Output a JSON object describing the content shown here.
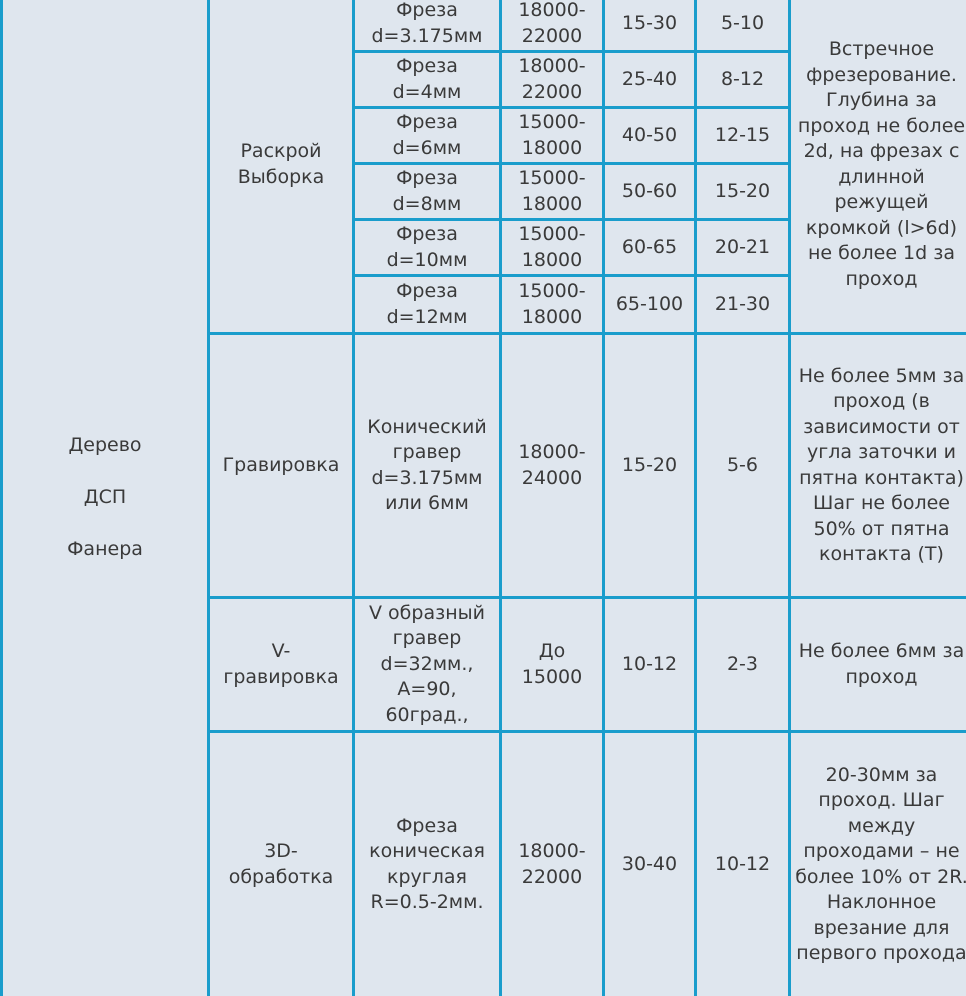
{
  "table": {
    "material": "Дерево\nДСП\nФанера",
    "groups": [
      {
        "operation": "Раскрой\nВыборка",
        "note": "Встречное фрезерование. Глубина за проход не более 2d, на фрезах с длинной режущей кромкой (l>6d) не более 1d за проход",
        "rows": [
          {
            "tool": "Фреза\nd=3.175мм",
            "rpm": "18000-\n22000",
            "feed": "15-30",
            "plunge": "5-10"
          },
          {
            "tool": "Фреза\nd=4мм",
            "rpm": "18000-\n22000",
            "feed": "25-40",
            "plunge": "8-12"
          },
          {
            "tool": "Фреза\nd=6мм",
            "rpm": "15000-\n18000",
            "feed": "40-50",
            "plunge": "12-15"
          },
          {
            "tool": "Фреза\nd=8мм",
            "rpm": "15000-\n18000",
            "feed": "50-60",
            "plunge": "15-20"
          },
          {
            "tool": "Фреза\nd=10мм",
            "rpm": "15000-\n18000",
            "feed": "60-65",
            "plunge": "20-21"
          },
          {
            "tool": "Фреза\nd=12мм",
            "rpm": "15000-\n18000",
            "feed": "65-100",
            "plunge": "21-30"
          }
        ]
      },
      {
        "operation": "Гравировка",
        "tool": "Конический\nгравер\nd=3.175мм\nили 6мм",
        "rpm": "18000-\n24000",
        "feed": "15-20",
        "plunge": "5-6",
        "note": "Не более 5мм за проход (в зависимости от угла заточки и пятна контакта) Шаг не более 50% от пятна контакта (T)"
      },
      {
        "operation": "V-\nгравировка",
        "tool": "V образный\nгравер\nd=32мм.,\nA=90,\n60град.,",
        "rpm": "До\n15000",
        "feed": "10-12",
        "plunge": "2-3",
        "note": "Не более 6мм за проход"
      },
      {
        "operation": "3D-\nобработка",
        "tool": "Фреза\nконическая\nкруглая\nR=0.5-2мм.",
        "rpm": "18000-\n22000",
        "feed": "30-40",
        "plunge": "10-12",
        "note": "20-30мм за проход. Шаг между проходами – не более 10% от 2R. Наклонное врезание для первого прохода"
      }
    ]
  }
}
